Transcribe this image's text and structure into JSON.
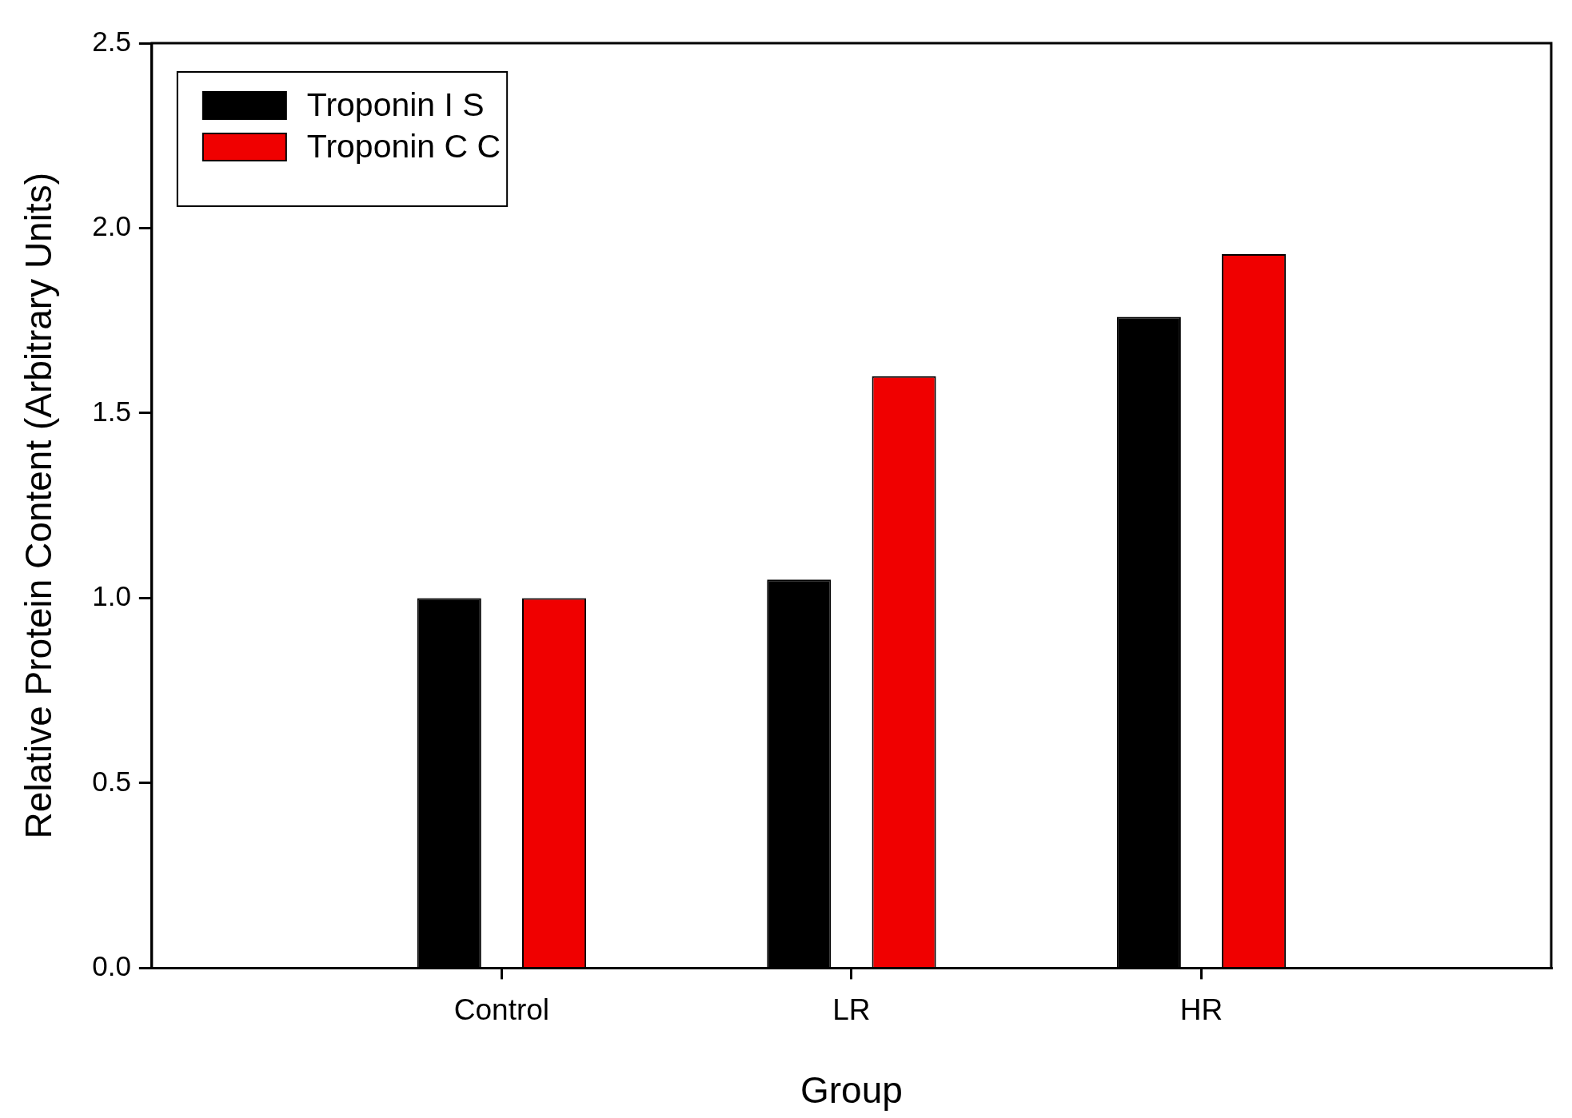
{
  "chart_data": {
    "type": "bar",
    "xlabel": "Group",
    "ylabel": "Relative Protein Content (Arbitrary Units)",
    "categories": [
      "Control",
      "LR",
      "HR"
    ],
    "series": [
      {
        "name": "Troponin I S",
        "color": "#000000",
        "values": [
          1.0,
          1.05,
          1.76
        ]
      },
      {
        "name": "Troponin C C",
        "color": "#f00000",
        "values": [
          1.0,
          1.6,
          1.93
        ]
      }
    ],
    "ylim": [
      0,
      2.5
    ],
    "yticks": [
      {
        "value": 0,
        "label": "0.0"
      },
      {
        "value": 0.5,
        "label": "0.5"
      },
      {
        "value": 1,
        "label": "1.0"
      },
      {
        "value": 1.5,
        "label": "1.5"
      },
      {
        "value": 2,
        "label": "2.0"
      },
      {
        "value": 2.5,
        "label": "2.5"
      }
    ],
    "grid": false,
    "legend": "top left"
  }
}
